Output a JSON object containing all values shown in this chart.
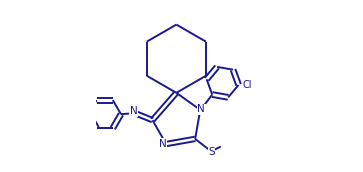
{
  "bg_color": "#ffffff",
  "line_color": "#1a1a8c",
  "line_width": 1.4,
  "figsize": [
    3.63,
    1.72
  ],
  "dpi": 100,
  "xlim": [
    0.0,
    1.0
  ],
  "ylim": [
    0.0,
    1.0
  ]
}
